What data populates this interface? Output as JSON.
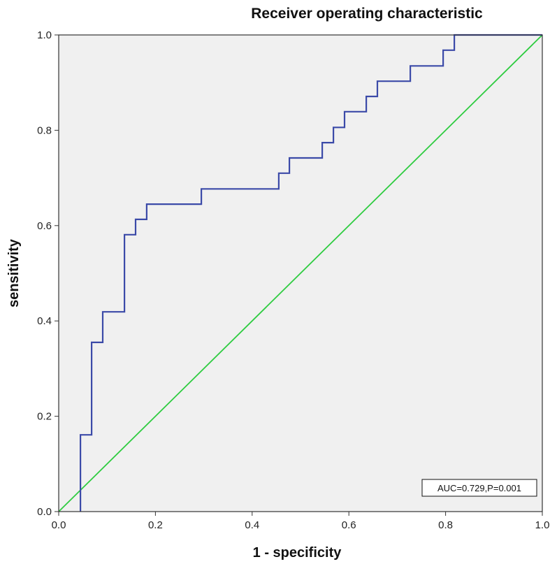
{
  "chart_data": {
    "type": "line",
    "title": "Receiver operating characteristic",
    "xlabel": "1 - specificity",
    "ylabel": "sensitivity",
    "xlim": [
      0,
      1
    ],
    "ylim": [
      0,
      1
    ],
    "x_ticks": [
      "0.0",
      "0.2",
      "0.4",
      "0.6",
      "0.8",
      "1.0"
    ],
    "y_ticks": [
      "0.0",
      "0.2",
      "0.4",
      "0.6",
      "0.8",
      "1.0"
    ],
    "grid": false,
    "annotation": "AUC=0.729,P=0.001",
    "colors": {
      "roc": "#3b4aa8",
      "reference": "#2ecc40",
      "plot_bg": "#f0f0f0",
      "frame": "#333333"
    },
    "series": [
      {
        "type": "step",
        "color": "#3b4aa8",
        "x": [
          0.045,
          0.045,
          0.068,
          0.068,
          0.091,
          0.091,
          0.136,
          0.136,
          0.159,
          0.159,
          0.182,
          0.182,
          0.295,
          0.295,
          0.455,
          0.455,
          0.477,
          0.477,
          0.545,
          0.545,
          0.568,
          0.568,
          0.591,
          0.591,
          0.636,
          0.636,
          0.659,
          0.659,
          0.727,
          0.727,
          0.795,
          0.795,
          0.818,
          0.818,
          1.0
        ],
        "y": [
          0.0,
          0.161,
          0.161,
          0.355,
          0.355,
          0.419,
          0.419,
          0.581,
          0.581,
          0.613,
          0.613,
          0.645,
          0.645,
          0.677,
          0.677,
          0.71,
          0.71,
          0.742,
          0.742,
          0.774,
          0.774,
          0.806,
          0.806,
          0.839,
          0.839,
          0.871,
          0.871,
          0.903,
          0.903,
          0.935,
          0.935,
          0.968,
          0.968,
          1.0,
          1.0
        ]
      },
      {
        "type": "line",
        "color": "#2ecc40",
        "x": [
          0,
          1
        ],
        "y": [
          0,
          1
        ]
      }
    ]
  }
}
